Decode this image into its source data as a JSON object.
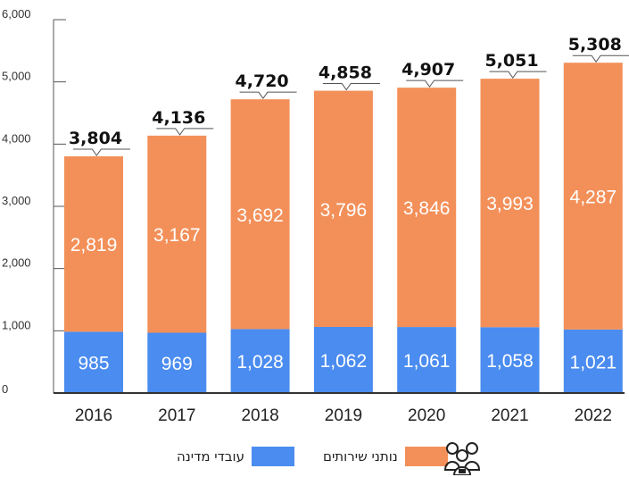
{
  "chart_data": {
    "type": "bar",
    "stacked": true,
    "categories": [
      "2016",
      "2017",
      "2018",
      "2019",
      "2020",
      "2021",
      "2022"
    ],
    "series": [
      {
        "name": "עובדי מדינה",
        "color": "#4a8cf0",
        "values": [
          985,
          969,
          1028,
          1062,
          1061,
          1058,
          1021
        ],
        "labels": [
          "985",
          "969",
          "1,028",
          "1,062",
          "1,061",
          "1,058",
          "1,021"
        ]
      },
      {
        "name": "נותני שירותים",
        "color": "#f39059",
        "values": [
          2819,
          3167,
          3692,
          3796,
          3846,
          3993,
          4287
        ],
        "labels": [
          "2,819",
          "3,167",
          "3,692",
          "3,796",
          "3,846",
          "3,993",
          "4,287"
        ]
      }
    ],
    "totals": [
      3804,
      4136,
      4720,
      4858,
      4907,
      5051,
      5308
    ],
    "total_labels": [
      "3,804",
      "4,136",
      "4,720",
      "4,858",
      "4,907",
      "5,051",
      "5,308"
    ],
    "ylim": [
      0,
      6000
    ],
    "yticks": [
      "0",
      "1,000",
      "2,000",
      "3,000",
      "4,000",
      "5,000",
      "6,000"
    ],
    "xlabel": "",
    "ylabel": "",
    "title": "",
    "grid": false,
    "legend_position": "bottom-center"
  },
  "legend": {
    "items": [
      {
        "label": "עובדי מדינה",
        "color": "#4a8cf0"
      },
      {
        "label": "נותני שירותים",
        "color": "#f39059"
      }
    ],
    "icon": "people-icon"
  }
}
